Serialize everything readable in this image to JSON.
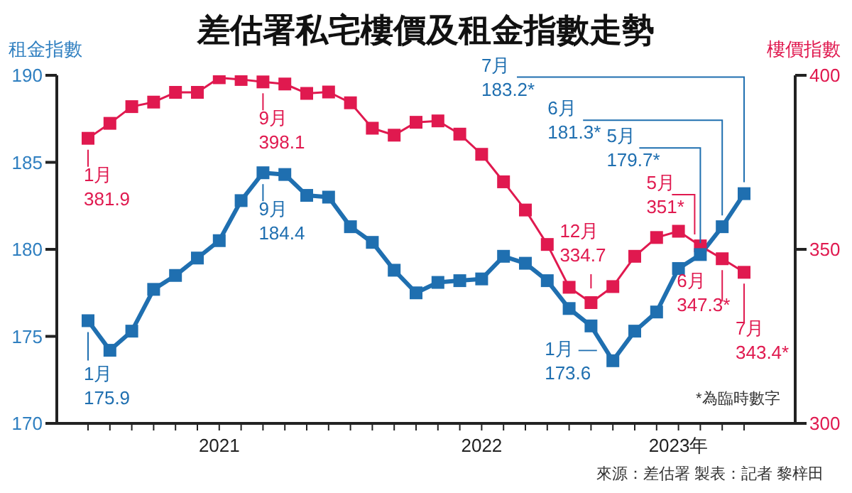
{
  "chart_data": {
    "type": "line",
    "title": "差估署私宅樓價及租金指數走勢",
    "ylabel": "租金指數",
    "y2label": "樓價指數",
    "categories": [
      null,
      null,
      null,
      null,
      null,
      null,
      "2021",
      null,
      null,
      null,
      null,
      null,
      null,
      null,
      null,
      null,
      null,
      null,
      "2022",
      null,
      null,
      null,
      null,
      null,
      null,
      null,
      null,
      "2023年",
      null,
      null,
      null
    ],
    "series": [
      {
        "color": "#e0194f",
        "axis": "y2",
        "values": [
          381.9,
          386.2,
          391.0,
          392.3,
          395.1,
          395.1,
          399.3,
          398.8,
          398.1,
          397.5,
          394.8,
          395.2,
          392.1,
          384.8,
          382.8,
          386.5,
          386.9,
          383.1,
          377.3,
          369.4,
          361.3,
          351.4,
          339.1,
          334.7,
          339.3,
          348.0,
          353.4,
          355.2,
          351,
          347.3,
          343.4
        ],
        "value_labels": [
          "1月\n381.9",
          null,
          null,
          null,
          null,
          null,
          null,
          null,
          "9月\n398.1",
          null,
          null,
          null,
          null,
          null,
          null,
          null,
          null,
          null,
          null,
          null,
          null,
          null,
          null,
          "12月\n334.7",
          null,
          null,
          null,
          null,
          "5月\n351*",
          "6月\n347.3*",
          "7月\n343.4*"
        ]
      },
      {
        "color": "#1f6fb0",
        "values": [
          175.9,
          174.2,
          175.3,
          177.7,
          178.5,
          179.5,
          180.5,
          182.8,
          184.4,
          184.3,
          183.1,
          183.0,
          181.3,
          180.4,
          178.8,
          177.5,
          178.1,
          178.2,
          178.3,
          179.6,
          179.2,
          178.2,
          176.6,
          175.6,
          173.6,
          175.3,
          176.4,
          178.9,
          179.7,
          181.3,
          183.2
        ],
        "value_labels": [
          "1月\n175.9",
          null,
          null,
          null,
          null,
          null,
          null,
          null,
          "9月\n184.4",
          null,
          null,
          null,
          null,
          null,
          null,
          null,
          null,
          null,
          null,
          null,
          null,
          null,
          null,
          null,
          "1月 —\n173.6",
          null,
          null,
          null,
          "5月\n179.7*",
          "6月\n181.3*",
          "7月\n183.2*"
        ]
      }
    ],
    "ylim": [
      170,
      190
    ],
    "yticks": [
      170,
      175,
      180,
      185,
      190
    ],
    "y2lim": [
      300,
      400
    ],
    "y2ticks": [
      300,
      350,
      400
    ],
    "marker": "square",
    "line_style": "solid",
    "annotations": [
      "*為臨時數字",
      "來源：差估署 製表：記者 黎梓田"
    ]
  }
}
